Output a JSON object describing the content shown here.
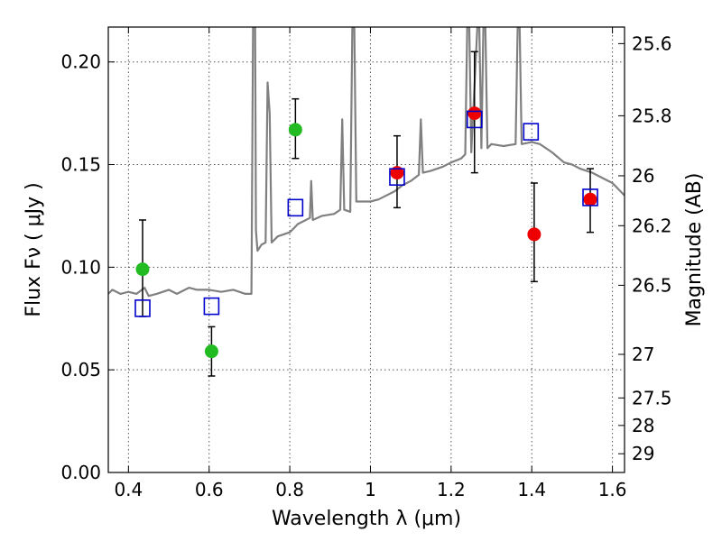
{
  "chart_data": {
    "type": "scatter",
    "xlabel": "Wavelength  λ (μm)",
    "ylabel": "Flux  Fν  ( μJy )",
    "y2label": "Magnitude (AB)",
    "xlim": [
      0.35,
      1.63
    ],
    "ylim": [
      0.0,
      0.217
    ],
    "grid": true,
    "x_ticks": [
      {
        "v": 0.4,
        "label": "0.4"
      },
      {
        "v": 0.6,
        "label": "0.6"
      },
      {
        "v": 0.8,
        "label": "0.8"
      },
      {
        "v": 1.0,
        "label": "1"
      },
      {
        "v": 1.2,
        "label": "1.2"
      },
      {
        "v": 1.4,
        "label": "1.4"
      },
      {
        "v": 1.6,
        "label": "1.6"
      }
    ],
    "y_ticks": [
      {
        "v": 0.0,
        "label": "0.00"
      },
      {
        "v": 0.05,
        "label": "0.05"
      },
      {
        "v": 0.1,
        "label": "0.10"
      },
      {
        "v": 0.15,
        "label": "0.15"
      },
      {
        "v": 0.2,
        "label": "0.20"
      }
    ],
    "mag_ticks": [
      {
        "label": "25.6"
      },
      {
        "label": "25.8"
      },
      {
        "label": "26"
      },
      {
        "label": "26.2"
      },
      {
        "label": "26.5"
      },
      {
        "label": "27"
      },
      {
        "label": "27.5"
      },
      {
        "label": "28"
      },
      {
        "label": "29"
      }
    ],
    "colors": {
      "spectrum": "#808080",
      "green": "#22bb22",
      "red": "#ee0000",
      "model": "#0000cc",
      "errorbar": "#000000",
      "grid": "#555555"
    },
    "series": [
      {
        "marker": "green-circle",
        "points": [
          {
            "x": 0.435,
            "y": 0.099,
            "lo": 0.076,
            "hi": 0.123
          },
          {
            "x": 0.606,
            "y": 0.059,
            "lo": 0.047,
            "hi": 0.071
          },
          {
            "x": 0.814,
            "y": 0.167,
            "lo": 0.153,
            "hi": 0.182
          }
        ]
      },
      {
        "marker": "red-circle",
        "points": [
          {
            "x": 1.066,
            "y": 0.146,
            "lo": 0.129,
            "hi": 0.164
          },
          {
            "x": 1.258,
            "y": 0.175,
            "lo": 0.146,
            "hi": 0.205
          },
          {
            "x": 1.406,
            "y": 0.116,
            "lo": 0.093,
            "hi": 0.141
          },
          {
            "x": 1.545,
            "y": 0.133,
            "lo": 0.117,
            "hi": 0.148
          }
        ]
      },
      {
        "marker": "blue-square",
        "points": [
          {
            "x": 0.435,
            "y": 0.08
          },
          {
            "x": 0.606,
            "y": 0.081
          },
          {
            "x": 0.814,
            "y": 0.129
          },
          {
            "x": 1.066,
            "y": 0.144
          },
          {
            "x": 1.258,
            "y": 0.172
          },
          {
            "x": 1.398,
            "y": 0.166
          },
          {
            "x": 1.545,
            "y": 0.134
          }
        ]
      }
    ],
    "spectrum": [
      [
        0.35,
        0.087
      ],
      [
        0.36,
        0.089
      ],
      [
        0.38,
        0.087
      ],
      [
        0.4,
        0.088
      ],
      [
        0.42,
        0.087
      ],
      [
        0.44,
        0.09
      ],
      [
        0.45,
        0.086
      ],
      [
        0.47,
        0.087
      ],
      [
        0.5,
        0.089
      ],
      [
        0.52,
        0.087
      ],
      [
        0.55,
        0.09
      ],
      [
        0.57,
        0.089
      ],
      [
        0.6,
        0.089
      ],
      [
        0.63,
        0.088
      ],
      [
        0.66,
        0.089
      ],
      [
        0.69,
        0.087
      ],
      [
        0.705,
        0.087
      ],
      [
        0.709,
        0.217
      ],
      [
        0.714,
        0.217
      ],
      [
        0.716,
        0.118
      ],
      [
        0.72,
        0.108
      ],
      [
        0.73,
        0.111
      ],
      [
        0.74,
        0.112
      ],
      [
        0.745,
        0.19
      ],
      [
        0.75,
        0.175
      ],
      [
        0.755,
        0.112
      ],
      [
        0.77,
        0.115
      ],
      [
        0.8,
        0.117
      ],
      [
        0.81,
        0.119
      ],
      [
        0.82,
        0.121
      ],
      [
        0.85,
        0.124
      ],
      [
        0.853,
        0.142
      ],
      [
        0.857,
        0.123
      ],
      [
        0.88,
        0.125
      ],
      [
        0.91,
        0.126
      ],
      [
        0.925,
        0.128
      ],
      [
        0.93,
        0.172
      ],
      [
        0.935,
        0.128
      ],
      [
        0.95,
        0.127
      ],
      [
        0.955,
        0.217
      ],
      [
        0.96,
        0.217
      ],
      [
        0.965,
        0.132
      ],
      [
        1.0,
        0.132
      ],
      [
        1.02,
        0.133
      ],
      [
        1.04,
        0.135
      ],
      [
        1.06,
        0.137
      ],
      [
        1.08,
        0.14
      ],
      [
        1.1,
        0.142
      ],
      [
        1.12,
        0.145
      ],
      [
        1.125,
        0.172
      ],
      [
        1.13,
        0.146
      ],
      [
        1.15,
        0.147
      ],
      [
        1.18,
        0.149
      ],
      [
        1.2,
        0.151
      ],
      [
        1.225,
        0.153
      ],
      [
        1.235,
        0.155
      ],
      [
        1.24,
        0.217
      ],
      [
        1.245,
        0.217
      ],
      [
        1.25,
        0.156
      ],
      [
        1.265,
        0.217
      ],
      [
        1.27,
        0.217
      ],
      [
        1.275,
        0.158
      ],
      [
        1.28,
        0.217
      ],
      [
        1.285,
        0.217
      ],
      [
        1.29,
        0.158
      ],
      [
        1.3,
        0.16
      ],
      [
        1.33,
        0.159
      ],
      [
        1.36,
        0.16
      ],
      [
        1.365,
        0.217
      ],
      [
        1.37,
        0.217
      ],
      [
        1.375,
        0.16
      ],
      [
        1.4,
        0.161
      ],
      [
        1.42,
        0.16
      ],
      [
        1.45,
        0.156
      ],
      [
        1.48,
        0.151
      ],
      [
        1.5,
        0.15
      ],
      [
        1.52,
        0.148
      ],
      [
        1.55,
        0.146
      ],
      [
        1.58,
        0.143
      ],
      [
        1.6,
        0.141
      ],
      [
        1.62,
        0.137
      ],
      [
        1.63,
        0.135
      ]
    ]
  }
}
